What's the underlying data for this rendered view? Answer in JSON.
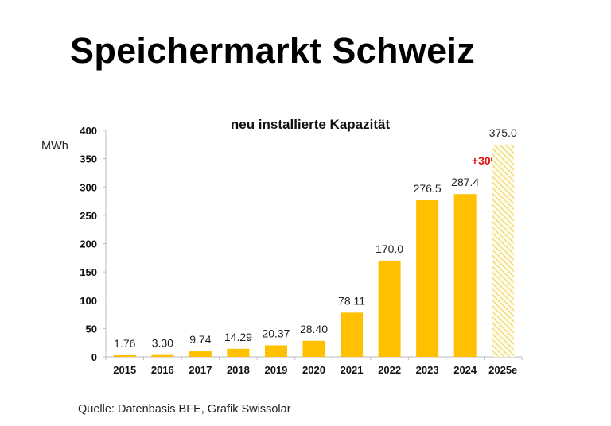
{
  "page_title": "Speichermarkt Schweiz",
  "source": "Quelle: Datenbasis BFE, Grafik Swissolar",
  "chart_data": {
    "type": "bar",
    "title": "neu installierte Kapazität",
    "ylabel": "MWh",
    "xlabel": "",
    "ylim": [
      0,
      400
    ],
    "yticks": [
      0,
      50,
      100,
      150,
      200,
      250,
      300,
      350,
      400
    ],
    "grid": false,
    "categories": [
      "2015",
      "2016",
      "2017",
      "2018",
      "2019",
      "2020",
      "2021",
      "2022",
      "2023",
      "2024",
      "2025e"
    ],
    "values": [
      1.76,
      3.3,
      9.74,
      14.29,
      20.37,
      28.4,
      78.11,
      170.0,
      276.5,
      287.4,
      375.0
    ],
    "data_labels": [
      "1.76",
      "3.30",
      "9.74",
      "14.29",
      "20.37",
      "28.40",
      "78.11",
      "170.0",
      "276.5",
      "287.4",
      "375.0"
    ],
    "estimated_categories": [
      "2025e"
    ],
    "annotation": "+30%",
    "colors": {
      "bar": "#FFC000",
      "estimate_hatch": "#E8D060",
      "annotation": "#E01010"
    }
  }
}
